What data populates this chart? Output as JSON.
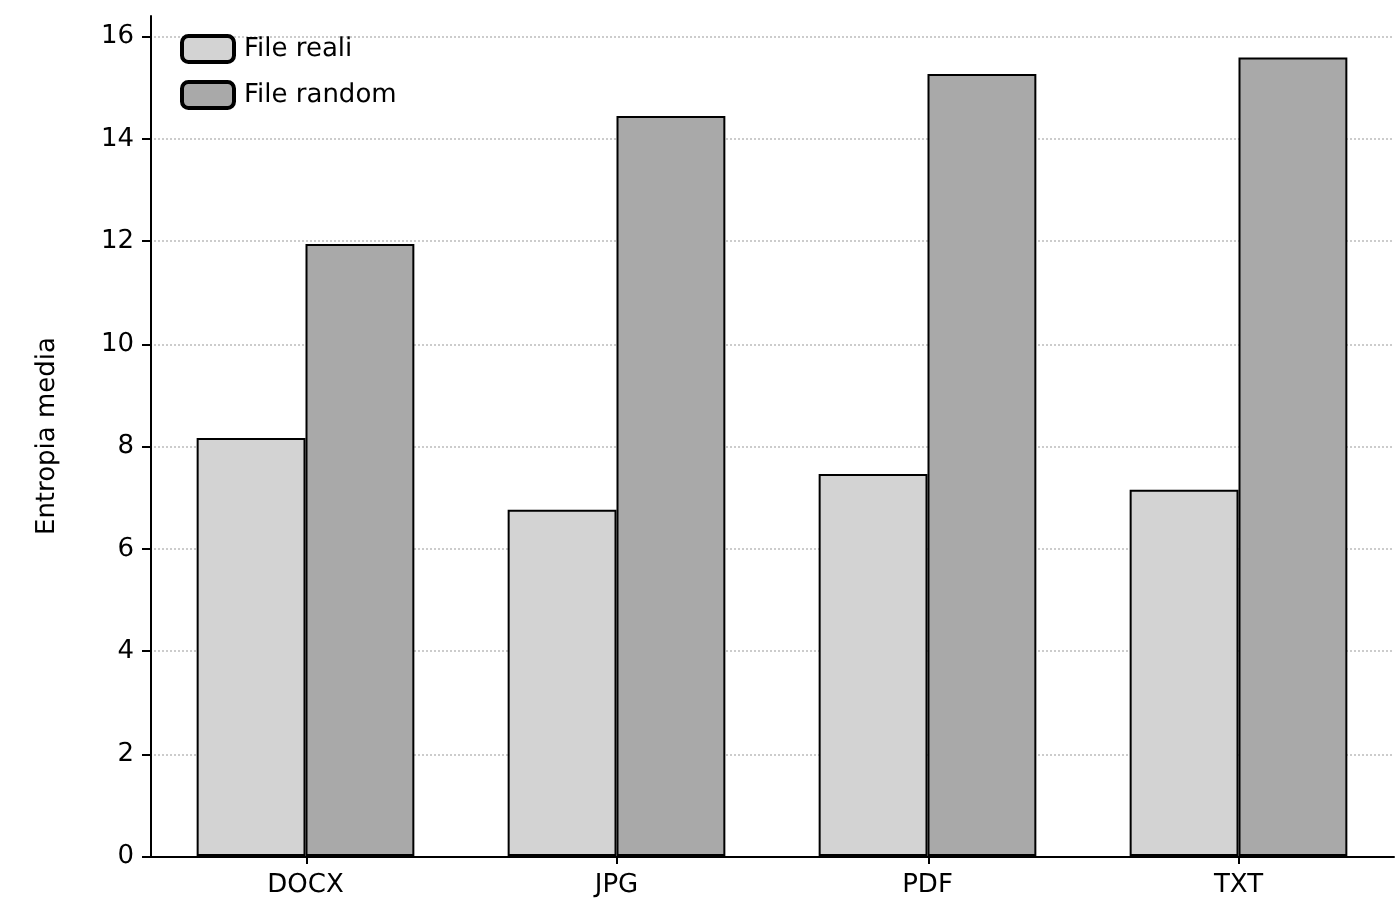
{
  "chart_data": {
    "type": "bar",
    "ylabel": "Entropia media",
    "categories": [
      "DOCX",
      "JPG",
      "PDF",
      "TXT"
    ],
    "series": [
      {
        "name": "File reali",
        "color": "#d3d3d3",
        "values": [
          8.16,
          6.76,
          7.46,
          7.15
        ]
      },
      {
        "name": "File random",
        "color": "#a9a9a9",
        "values": [
          11.95,
          14.45,
          15.27,
          15.59
        ]
      }
    ],
    "ylim": [
      0,
      16.4
    ],
    "yticks": [
      0,
      2,
      4,
      6,
      8,
      10,
      12,
      14,
      16
    ],
    "grid": "y",
    "legend": "top left"
  }
}
